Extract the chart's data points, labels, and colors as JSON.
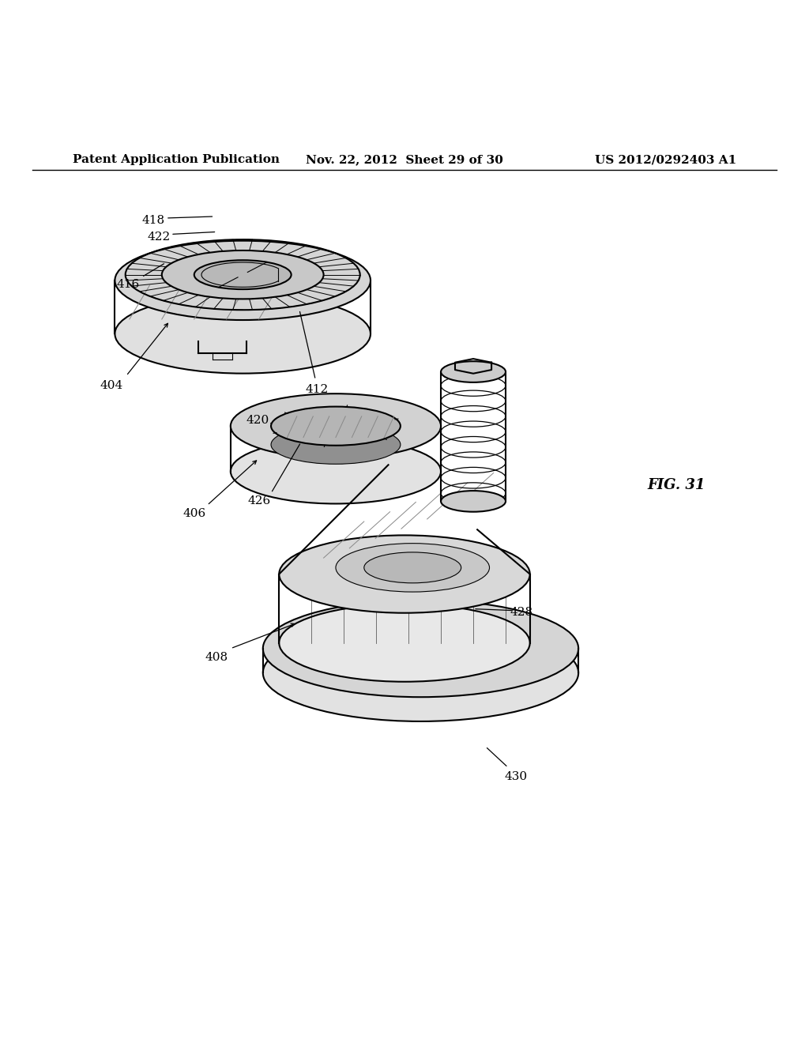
{
  "background_color": "#ffffff",
  "page_header": {
    "left": "Patent Application Publication",
    "center": "Nov. 22, 2012  Sheet 29 of 30",
    "right": "US 2012/0292403 A1"
  },
  "figure_label": "FIG. 31",
  "line_color": "#000000",
  "text_color": "#000000",
  "font_size_header": 11,
  "font_size_labels": 11,
  "font_size_fig": 12
}
